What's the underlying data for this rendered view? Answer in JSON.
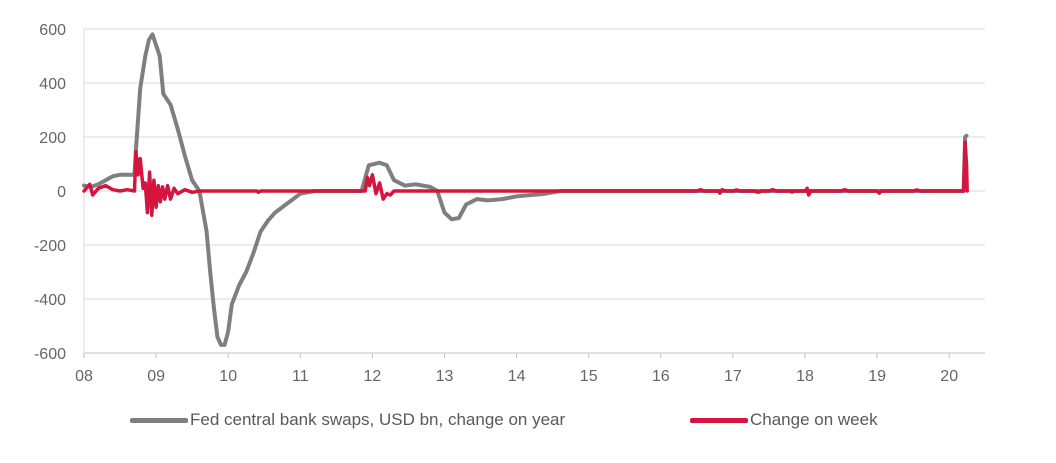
{
  "chart_data": {
    "type": "line",
    "title": "",
    "xlabel": "",
    "ylabel": "",
    "x_tick_labels": [
      "08",
      "09",
      "10",
      "11",
      "12",
      "13",
      "14",
      "15",
      "16",
      "17",
      "18",
      "19",
      "20"
    ],
    "y_tick_labels": [
      "600",
      "400",
      "200",
      "0",
      "-200",
      "-400",
      "-600"
    ],
    "y_ticks": [
      600,
      400,
      200,
      0,
      -200,
      -400,
      -600
    ],
    "xlim": [
      2008.0,
      2020.25
    ],
    "ylim": [
      -600,
      600
    ],
    "grid": "horizontal",
    "legend_position": "bottom",
    "series": [
      {
        "name": "Fed central bank swaps, USD bn, change on year",
        "color": "#7f7f7f",
        "points": [
          [
            2008.0,
            20
          ],
          [
            2008.1,
            15
          ],
          [
            2008.2,
            25
          ],
          [
            2008.3,
            40
          ],
          [
            2008.4,
            55
          ],
          [
            2008.5,
            60
          ],
          [
            2008.6,
            60
          ],
          [
            2008.7,
            60
          ],
          [
            2008.72,
            150
          ],
          [
            2008.78,
            380
          ],
          [
            2008.85,
            500
          ],
          [
            2008.9,
            560
          ],
          [
            2008.95,
            580
          ],
          [
            2009.0,
            540
          ],
          [
            2009.05,
            500
          ],
          [
            2009.1,
            360
          ],
          [
            2009.2,
            320
          ],
          [
            2009.3,
            230
          ],
          [
            2009.4,
            130
          ],
          [
            2009.5,
            40
          ],
          [
            2009.6,
            0
          ],
          [
            2009.7,
            -150
          ],
          [
            2009.75,
            -300
          ],
          [
            2009.8,
            -430
          ],
          [
            2009.85,
            -540
          ],
          [
            2009.9,
            -570
          ],
          [
            2009.95,
            -570
          ],
          [
            2010.0,
            -520
          ],
          [
            2010.05,
            -420
          ],
          [
            2010.15,
            -350
          ],
          [
            2010.25,
            -300
          ],
          [
            2010.35,
            -230
          ],
          [
            2010.45,
            -150
          ],
          [
            2010.55,
            -110
          ],
          [
            2010.65,
            -80
          ],
          [
            2010.8,
            -50
          ],
          [
            2010.9,
            -30
          ],
          [
            2011.0,
            -10
          ],
          [
            2011.2,
            0
          ],
          [
            2011.5,
            0
          ],
          [
            2011.85,
            0
          ],
          [
            2011.95,
            95
          ],
          [
            2012.1,
            105
          ],
          [
            2012.2,
            95
          ],
          [
            2012.3,
            40
          ],
          [
            2012.45,
            20
          ],
          [
            2012.6,
            25
          ],
          [
            2012.8,
            15
          ],
          [
            2012.9,
            0
          ],
          [
            2013.0,
            -80
          ],
          [
            2013.1,
            -105
          ],
          [
            2013.2,
            -100
          ],
          [
            2013.3,
            -50
          ],
          [
            2013.45,
            -30
          ],
          [
            2013.6,
            -35
          ],
          [
            2013.8,
            -30
          ],
          [
            2014.0,
            -20
          ],
          [
            2014.2,
            -15
          ],
          [
            2014.4,
            -10
          ],
          [
            2014.6,
            0
          ],
          [
            2015.0,
            0
          ],
          [
            2016.0,
            0
          ],
          [
            2017.0,
            0
          ],
          [
            2018.0,
            0
          ],
          [
            2019.0,
            0
          ],
          [
            2020.0,
            0
          ],
          [
            2020.2,
            0
          ],
          [
            2020.22,
            200
          ],
          [
            2020.24,
            205
          ]
        ]
      },
      {
        "name": "Change on week",
        "color": "#d5153f",
        "points": [
          [
            2008.0,
            0
          ],
          [
            2008.08,
            25
          ],
          [
            2008.12,
            -15
          ],
          [
            2008.2,
            10
          ],
          [
            2008.3,
            20
          ],
          [
            2008.4,
            5
          ],
          [
            2008.5,
            0
          ],
          [
            2008.6,
            5
          ],
          [
            2008.7,
            0
          ],
          [
            2008.72,
            145
          ],
          [
            2008.75,
            60
          ],
          [
            2008.78,
            120
          ],
          [
            2008.82,
            10
          ],
          [
            2008.85,
            30
          ],
          [
            2008.88,
            -80
          ],
          [
            2008.91,
            70
          ],
          [
            2008.94,
            -90
          ],
          [
            2008.97,
            40
          ],
          [
            2009.0,
            -60
          ],
          [
            2009.03,
            20
          ],
          [
            2009.06,
            -40
          ],
          [
            2009.09,
            15
          ],
          [
            2009.12,
            -30
          ],
          [
            2009.16,
            20
          ],
          [
            2009.2,
            -30
          ],
          [
            2009.25,
            10
          ],
          [
            2009.3,
            -10
          ],
          [
            2009.4,
            5
          ],
          [
            2009.5,
            -5
          ],
          [
            2009.6,
            0
          ],
          [
            2010.0,
            0
          ],
          [
            2010.4,
            0
          ],
          [
            2010.42,
            -5
          ],
          [
            2010.45,
            0
          ],
          [
            2011.0,
            0
          ],
          [
            2011.9,
            0
          ],
          [
            2011.93,
            50
          ],
          [
            2011.96,
            20
          ],
          [
            2012.0,
            60
          ],
          [
            2012.05,
            -10
          ],
          [
            2012.1,
            30
          ],
          [
            2012.15,
            -30
          ],
          [
            2012.2,
            -10
          ],
          [
            2012.25,
            -15
          ],
          [
            2012.3,
            0
          ],
          [
            2012.5,
            0
          ],
          [
            2013.0,
            0
          ],
          [
            2014.0,
            0
          ],
          [
            2015.0,
            0
          ],
          [
            2016.0,
            0
          ],
          [
            2016.5,
            0
          ],
          [
            2016.55,
            5
          ],
          [
            2016.6,
            0
          ],
          [
            2016.8,
            0
          ],
          [
            2016.82,
            -8
          ],
          [
            2016.85,
            5
          ],
          [
            2016.9,
            0
          ],
          [
            2017.0,
            0
          ],
          [
            2017.05,
            4
          ],
          [
            2017.1,
            0
          ],
          [
            2017.3,
            0
          ],
          [
            2017.35,
            -5
          ],
          [
            2017.4,
            0
          ],
          [
            2017.5,
            0
          ],
          [
            2017.55,
            5
          ],
          [
            2017.6,
            0
          ],
          [
            2017.8,
            0
          ],
          [
            2017.82,
            -4
          ],
          [
            2017.85,
            0
          ],
          [
            2018.0,
            0
          ],
          [
            2018.03,
            10
          ],
          [
            2018.05,
            -15
          ],
          [
            2018.08,
            0
          ],
          [
            2018.5,
            0
          ],
          [
            2018.55,
            5
          ],
          [
            2018.6,
            0
          ],
          [
            2019.0,
            0
          ],
          [
            2019.03,
            -8
          ],
          [
            2019.06,
            0
          ],
          [
            2019.5,
            0
          ],
          [
            2019.55,
            4
          ],
          [
            2019.6,
            0
          ],
          [
            2020.0,
            0
          ],
          [
            2020.2,
            0
          ],
          [
            2020.22,
            180
          ],
          [
            2020.24,
            100
          ],
          [
            2020.25,
            0
          ]
        ]
      }
    ]
  }
}
